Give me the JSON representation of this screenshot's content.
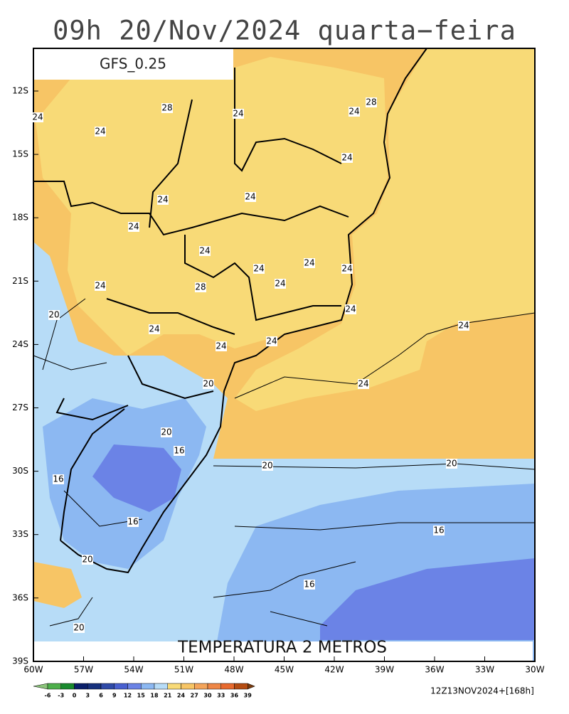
{
  "title": "09h 20/Nov/2024 quarta−feira",
  "model": "GFS_0.25",
  "map_title": "TEMPERATURA 2 METROS",
  "lat_labels": [
    "12S",
    "15S",
    "18S",
    "21S",
    "24S",
    "27S",
    "30S",
    "33S",
    "36S",
    "39S"
  ],
  "lon_labels": [
    "60W",
    "57W",
    "54W",
    "51W",
    "48W",
    "45W",
    "42W",
    "39W",
    "36W",
    "33W",
    "30W"
  ],
  "colorbar": {
    "labels": [
      -6,
      -3,
      0,
      3,
      6,
      9,
      12,
      15,
      18,
      21,
      24,
      27,
      30,
      33,
      36,
      39
    ],
    "colors": [
      "#8bc37a",
      "#4daf4a",
      "#1a8a2e",
      "#0a1f6a",
      "#16307d",
      "#2f4aa8",
      "#4960d0",
      "#6b83e6",
      "#8cb8f2",
      "#b7dcf7",
      "#f8da77",
      "#f7c565",
      "#f4a45a",
      "#ee8646",
      "#e86a2e",
      "#b54c12",
      "#7a3b0f"
    ]
  },
  "contour_labels": [
    24,
    28,
    24,
    24,
    28,
    24,
    24,
    24,
    24,
    24,
    24,
    24,
    24,
    24,
    24,
    28,
    24,
    24,
    20,
    24,
    24,
    24,
    24,
    24,
    20,
    20,
    16,
    20,
    20,
    16,
    16,
    16,
    20,
    16,
    20
  ],
  "footer": "12Z13NOV2024+[168h]"
}
